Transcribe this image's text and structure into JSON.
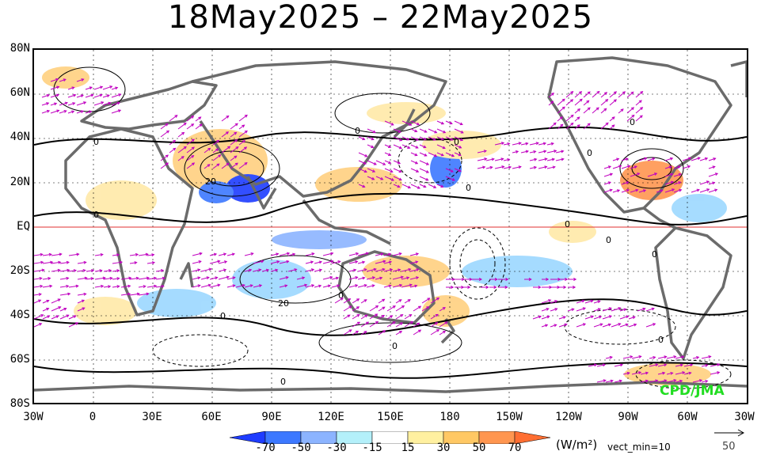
{
  "title": "18May2025 – 22May2025",
  "lat_labels": [
    "80N",
    "60N",
    "40N",
    "20N",
    "EQ",
    "20S",
    "40S",
    "60S",
    "80S"
  ],
  "lon_labels": [
    "30W",
    "0",
    "30E",
    "60E",
    "90E",
    "120E",
    "150E",
    "180",
    "150W",
    "120W",
    "90W",
    "60W",
    "30W"
  ],
  "colorbar": {
    "ticks": [
      "-70",
      "-50",
      "-30",
      "-15",
      "15",
      "30",
      "50",
      "70"
    ],
    "colors": [
      "#1e3cff",
      "#3c78ff",
      "#8cb4ff",
      "#b4f0fa",
      "#ffffff",
      "#fff0a0",
      "#ffc864",
      "#ff9650",
      "#ff6e32"
    ],
    "units": "(W/m²)",
    "vect_min": "vect_min=10",
    "ref_vector_value": "50"
  },
  "credit": "CPD/JMA",
  "contour_labels": [
    "0",
    "0",
    "0",
    "0",
    "0",
    "0",
    "0",
    "0",
    "0",
    "0",
    "0",
    "0",
    "0",
    "0",
    "0",
    "20",
    "20"
  ],
  "colors": {
    "vector": "#c000c0",
    "coast": "#6b6b6b",
    "equator": "#e03030",
    "pos_fill": "#ffd080",
    "neg_fill": "#9cd8ff"
  }
}
